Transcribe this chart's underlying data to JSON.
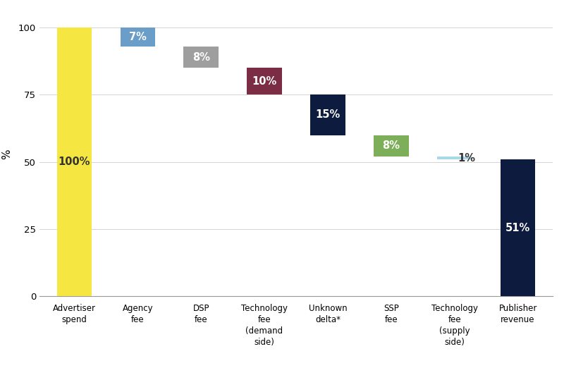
{
  "categories": [
    "Advertiser\nspend",
    "Agency\nfee",
    "DSP\nfee",
    "Technology\nfee\n(demand\nside)",
    "Unknown\ndelta*",
    "SSP\nfee",
    "Technology\nfee\n(supply\nside)",
    "Publisher\nrevenue"
  ],
  "bar_bottoms": [
    0,
    93,
    85,
    75,
    60,
    52,
    51,
    0
  ],
  "bar_heights": [
    100,
    7,
    8,
    10,
    15,
    8,
    1,
    51
  ],
  "bar_colors": [
    "#F5E642",
    "#6A9DC8",
    "#9E9E9E",
    "#7B2D46",
    "#0D1B3E",
    "#7DAF5A",
    "#A8D8EA",
    "#0D1B3E"
  ],
  "labels": [
    "100%",
    "7%",
    "8%",
    "10%",
    "15%",
    "8%",
    "1%",
    "51%"
  ],
  "label_colors": [
    "#333333",
    "#ffffff",
    "#ffffff",
    "#ffffff",
    "#ffffff",
    "#ffffff",
    "#333333",
    "#ffffff"
  ],
  "ylabel": "%",
  "ylim": [
    0,
    106
  ],
  "yticks": [
    0,
    25,
    50,
    75,
    100
  ],
  "background_color": "#ffffff",
  "bar_width": 0.55,
  "grid_color": "#cccccc",
  "figsize": [
    8.0,
    5.39
  ],
  "dpi": 100
}
